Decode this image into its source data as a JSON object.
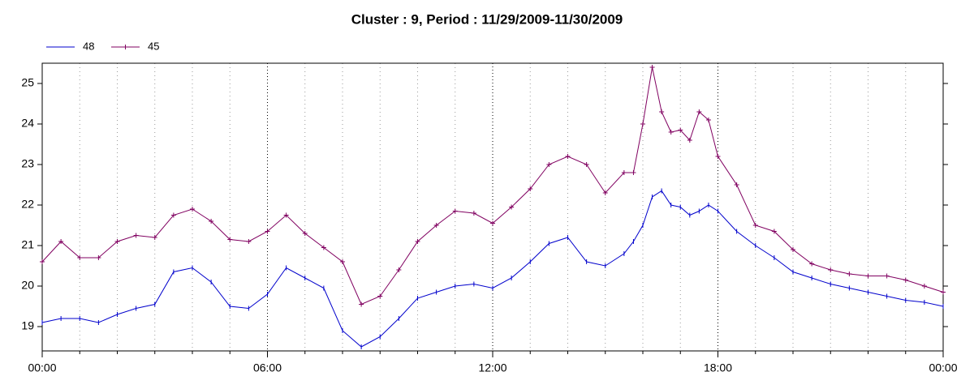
{
  "chart_data": {
    "type": "line",
    "title": "Cluster : 9, Period : 11/29/2009-11/30/2009",
    "x": [
      0,
      0.5,
      1,
      1.5,
      2,
      2.5,
      3,
      3.5,
      4,
      4.5,
      5,
      5.5,
      6,
      6.5,
      7,
      7.5,
      8,
      8.5,
      9,
      9.5,
      10,
      10.5,
      11,
      11.5,
      12,
      12.5,
      13,
      13.5,
      14,
      14.5,
      15,
      15.5,
      15.75,
      16,
      16.25,
      16.5,
      16.75,
      17,
      17.25,
      17.5,
      17.75,
      18,
      18.5,
      19,
      19.5,
      20,
      20.5,
      21,
      21.5,
      22,
      22.5,
      23,
      23.5,
      24
    ],
    "series": [
      {
        "name": "48",
        "color": "#0000cc",
        "marker": "tick",
        "values": [
          19.1,
          19.2,
          19.2,
          19.1,
          19.3,
          19.45,
          19.55,
          20.35,
          20.45,
          20.1,
          19.5,
          19.45,
          19.8,
          20.45,
          20.2,
          19.95,
          18.9,
          18.5,
          18.75,
          19.2,
          19.7,
          19.85,
          20.0,
          20.05,
          19.95,
          20.2,
          20.6,
          21.05,
          21.2,
          20.6,
          20.5,
          20.8,
          21.1,
          21.5,
          22.2,
          22.35,
          22.0,
          21.95,
          21.75,
          21.85,
          22.0,
          21.85,
          21.35,
          21.0,
          20.7,
          20.35,
          20.2,
          20.05,
          19.95,
          19.85,
          19.75,
          19.65,
          19.6,
          19.5
        ]
      },
      {
        "name": "45",
        "color": "#800060",
        "marker": "plus",
        "values": [
          20.6,
          21.1,
          20.7,
          20.7,
          21.1,
          21.25,
          21.2,
          21.75,
          21.9,
          21.6,
          21.15,
          21.1,
          21.35,
          21.75,
          21.3,
          20.95,
          20.6,
          19.55,
          19.75,
          20.4,
          21.1,
          21.5,
          21.85,
          21.8,
          21.55,
          21.95,
          22.4,
          23.0,
          23.2,
          23.0,
          22.3,
          22.8,
          22.8,
          24.0,
          25.4,
          24.3,
          23.8,
          23.85,
          23.6,
          24.3,
          24.1,
          23.2,
          22.5,
          21.5,
          21.35,
          20.9,
          20.55,
          20.4,
          20.3,
          20.25,
          20.25,
          20.15,
          20.0,
          19.85
        ]
      }
    ],
    "xlim": [
      0,
      24
    ],
    "xticks": [
      {
        "value": 0,
        "label": "00:00"
      },
      {
        "value": 6,
        "label": "06:00"
      },
      {
        "value": 12,
        "label": "12:00"
      },
      {
        "value": 18,
        "label": "18:00"
      },
      {
        "value": 24,
        "label": "00:00"
      }
    ],
    "ylim": [
      18.4,
      25.5
    ],
    "yticks": [
      19,
      20,
      21,
      22,
      23,
      24,
      25
    ],
    "grid": true,
    "legend": "top-left"
  }
}
